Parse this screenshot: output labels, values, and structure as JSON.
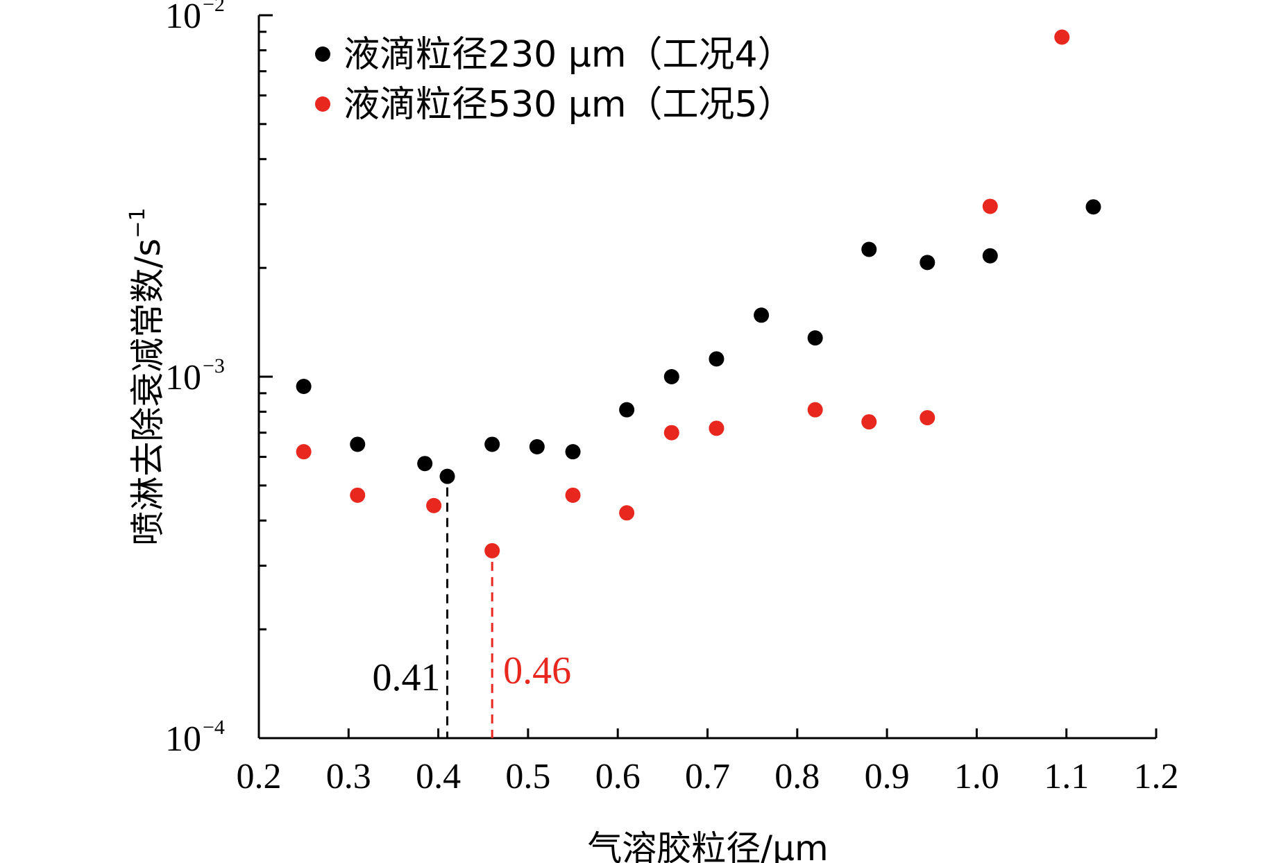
{
  "chart_data": {
    "type": "scatter",
    "title": "",
    "xlabel": "气溶胶粒径/μm",
    "ylabel": "喷淋去除衰减常数/s",
    "ylabel_sup": "−1",
    "xlim": [
      0.2,
      1.2
    ],
    "ylim": [
      0.0001,
      0.01
    ],
    "y_scale": "log",
    "x_ticks": [
      0.2,
      0.3,
      0.4,
      0.5,
      0.6,
      0.7,
      0.8,
      0.9,
      1.0,
      1.1,
      1.2
    ],
    "x_tick_labels": [
      "0.2",
      "0.3",
      "0.4",
      "0.5",
      "0.6",
      "0.7",
      "0.8",
      "0.9",
      "1.0",
      "1.1",
      "1.2"
    ],
    "y_ticks": [
      {
        "value": 0.0001,
        "base": "10",
        "exp": "−4"
      },
      {
        "value": 0.001,
        "base": "10",
        "exp": "−3"
      },
      {
        "value": 0.01,
        "base": "10",
        "exp": "−2"
      }
    ],
    "legend_position": "top-left",
    "series": [
      {
        "name": "液滴粒径230 μm（工况4）",
        "color": "#000000",
        "points": [
          [
            0.25,
            0.00094
          ],
          [
            0.31,
            0.00065
          ],
          [
            0.385,
            0.000575
          ],
          [
            0.41,
            0.00053
          ],
          [
            0.46,
            0.00065
          ],
          [
            0.51,
            0.00064
          ],
          [
            0.55,
            0.00062
          ],
          [
            0.61,
            0.00081
          ],
          [
            0.66,
            0.001
          ],
          [
            0.71,
            0.00112
          ],
          [
            0.76,
            0.00148
          ],
          [
            0.82,
            0.00128
          ],
          [
            0.88,
            0.00225
          ],
          [
            0.945,
            0.00207
          ],
          [
            1.015,
            0.00216
          ],
          [
            1.13,
            0.00295
          ]
        ]
      },
      {
        "name": "液滴粒径530 μm（工况5）",
        "color": "#e8271e",
        "points": [
          [
            0.25,
            0.00062
          ],
          [
            0.31,
            0.00047
          ],
          [
            0.395,
            0.00044
          ],
          [
            0.46,
            0.00033
          ],
          [
            0.55,
            0.00047
          ],
          [
            0.61,
            0.00042
          ],
          [
            0.66,
            0.0007
          ],
          [
            0.71,
            0.00072
          ],
          [
            0.82,
            0.00081
          ],
          [
            0.88,
            0.00075
          ],
          [
            0.945,
            0.00077
          ],
          [
            1.015,
            0.00296
          ],
          [
            1.095,
            0.0087
          ]
        ]
      }
    ],
    "annotations": [
      {
        "x": 0.41,
        "y_top": 0.00053,
        "label": "0.41",
        "color": "#000000"
      },
      {
        "x": 0.46,
        "y_top": 0.00033,
        "label": "0.46",
        "color": "#e8271e"
      }
    ]
  }
}
